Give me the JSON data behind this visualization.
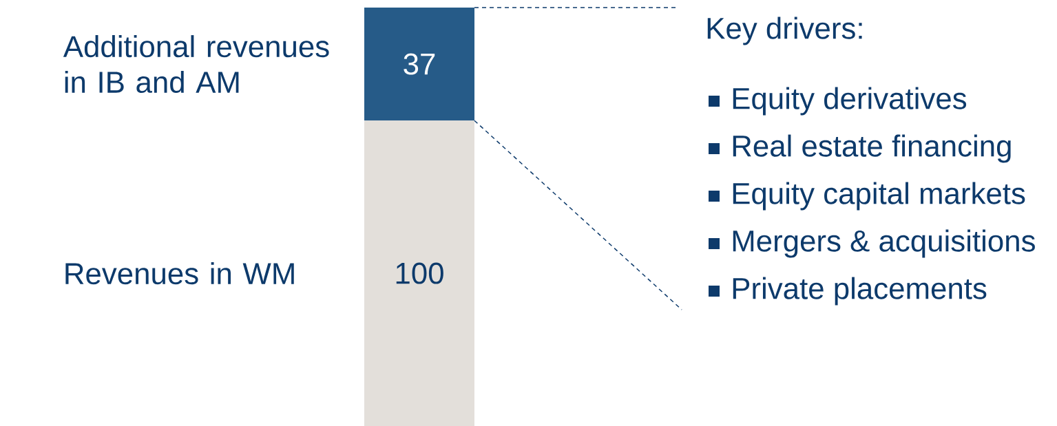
{
  "chart_data": {
    "type": "bar",
    "stacked": true,
    "data_labels": true,
    "categories": [
      null
    ],
    "series": [
      {
        "name": "Revenues in WM",
        "color": "#e3dfda",
        "values": [
          100
        ]
      },
      {
        "name": "Additional revenues in IB and AM",
        "color": "#265b88",
        "values": [
          37
        ]
      }
    ],
    "annotations": [
      "Key drivers:",
      "Equity derivatives",
      "Real estate financing",
      "Equity capital markets",
      "Mergers & acquisitions",
      "Private placements"
    ]
  }
}
